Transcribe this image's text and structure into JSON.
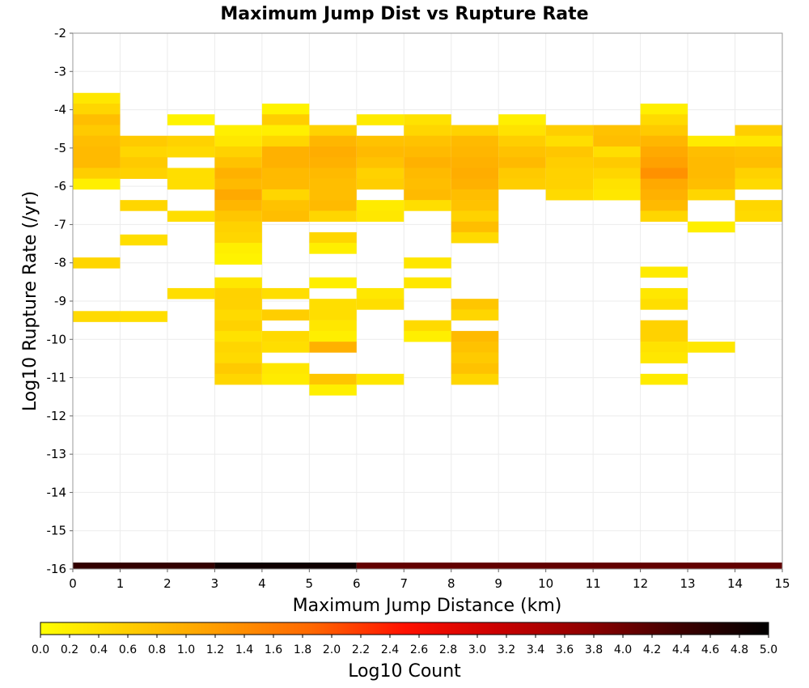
{
  "chart_data": {
    "type": "heatmap",
    "title": "Maximum Jump Dist vs Rupture Rate",
    "xlabel": "Maximum Jump Distance (km)",
    "ylabel": "Log10 Rupture Rate (/yr)",
    "xlim": [
      0,
      15
    ],
    "ylim": [
      -16,
      -2
    ],
    "x_ticks": [
      "0",
      "1",
      "2",
      "3",
      "4",
      "5",
      "6",
      "7",
      "8",
      "9",
      "10",
      "11",
      "12",
      "13",
      "14",
      "15"
    ],
    "y_ticks": [
      "-2",
      "-3",
      "-4",
      "-5",
      "-6",
      "-7",
      "-8",
      "-9",
      "-10",
      "-11",
      "-12",
      "-13",
      "-14",
      "-15",
      "-16"
    ],
    "x_bin_width": 1,
    "y_bin_height": 0.28,
    "grid": true,
    "colorbar": {
      "label": "Log10 Count",
      "range": [
        0,
        5
      ],
      "ticks": [
        "0.0",
        "0.2",
        "0.4",
        "0.6",
        "0.8",
        "1.0",
        "1.2",
        "1.4",
        "1.6",
        "1.8",
        "2.0",
        "2.2",
        "2.4",
        "2.6",
        "2.8",
        "3.0",
        "3.2",
        "3.4",
        "3.6",
        "3.8",
        "4.0",
        "4.2",
        "4.4",
        "4.6",
        "4.8",
        "5.0"
      ],
      "colors": [
        "#ffff00",
        "#ffcc00",
        "#ff9900",
        "#ff6600",
        "#ff1100",
        "#cc0000",
        "#8f0000",
        "#400000",
        "#000000"
      ]
    },
    "bottom_strip": [
      {
        "x0": 0,
        "x1": 3,
        "value": 4.5
      },
      {
        "x0": 3,
        "x1": 6,
        "value": 4.85
      },
      {
        "x0": 6,
        "x1": 15,
        "value": 4.1
      }
    ],
    "cells": [
      [
        0,
        -3.7,
        0.3
      ],
      [
        0,
        -3.98,
        0.5
      ],
      [
        0,
        -4.26,
        0.8
      ],
      [
        0,
        -4.54,
        0.65
      ],
      [
        0,
        -4.82,
        0.8
      ],
      [
        0,
        -5.1,
        0.85
      ],
      [
        0,
        -5.38,
        0.85
      ],
      [
        0,
        -5.66,
        0.6
      ],
      [
        0,
        -5.94,
        0.2
      ],
      [
        0,
        -8.0,
        0.5
      ],
      [
        0,
        -9.4,
        0.45
      ],
      [
        1,
        -4.82,
        0.65
      ],
      [
        1,
        -5.1,
        0.5
      ],
      [
        1,
        -5.38,
        0.65
      ],
      [
        1,
        -5.66,
        0.55
      ],
      [
        1,
        -6.5,
        0.5
      ],
      [
        1,
        -7.4,
        0.4
      ],
      [
        1,
        -9.4,
        0.4
      ],
      [
        2,
        -4.26,
        0.15
      ],
      [
        2,
        -4.82,
        0.55
      ],
      [
        2,
        -5.1,
        0.45
      ],
      [
        2,
        -5.66,
        0.4
      ],
      [
        2,
        -5.94,
        0.4
      ],
      [
        2,
        -6.78,
        0.4
      ],
      [
        2,
        -8.8,
        0.4
      ],
      [
        3,
        -4.54,
        0.2
      ],
      [
        3,
        -4.82,
        0.3
      ],
      [
        3,
        -5.1,
        0.55
      ],
      [
        3,
        -5.38,
        0.75
      ],
      [
        3,
        -5.66,
        0.95
      ],
      [
        3,
        -5.94,
        0.85
      ],
      [
        3,
        -6.22,
        1.05
      ],
      [
        3,
        -6.5,
        0.9
      ],
      [
        3,
        -6.78,
        0.7
      ],
      [
        3,
        -7.06,
        0.55
      ],
      [
        3,
        -7.34,
        0.5
      ],
      [
        3,
        -7.62,
        0.2
      ],
      [
        3,
        -7.9,
        0.15
      ],
      [
        3,
        -8.52,
        0.3
      ],
      [
        3,
        -8.8,
        0.55
      ],
      [
        3,
        -9.08,
        0.55
      ],
      [
        3,
        -9.36,
        0.45
      ],
      [
        3,
        -9.64,
        0.55
      ],
      [
        3,
        -9.92,
        0.35
      ],
      [
        3,
        -10.2,
        0.5
      ],
      [
        3,
        -10.48,
        0.45
      ],
      [
        3,
        -10.76,
        0.65
      ],
      [
        3,
        -11.04,
        0.5
      ],
      [
        4,
        -3.98,
        0.15
      ],
      [
        4,
        -4.26,
        0.6
      ],
      [
        4,
        -4.54,
        0.2
      ],
      [
        4,
        -4.82,
        0.5
      ],
      [
        4,
        -5.1,
        0.95
      ],
      [
        4,
        -5.38,
        0.95
      ],
      [
        4,
        -5.66,
        0.85
      ],
      [
        4,
        -5.94,
        0.85
      ],
      [
        4,
        -6.22,
        0.5
      ],
      [
        4,
        -6.5,
        0.75
      ],
      [
        4,
        -6.78,
        0.8
      ],
      [
        4,
        -8.8,
        0.4
      ],
      [
        4,
        -9.36,
        0.6
      ],
      [
        4,
        -9.92,
        0.45
      ],
      [
        4,
        -10.2,
        0.4
      ],
      [
        4,
        -10.76,
        0.3
      ],
      [
        4,
        -11.04,
        0.25
      ],
      [
        5,
        -4.54,
        0.55
      ],
      [
        5,
        -4.82,
        0.9
      ],
      [
        5,
        -5.1,
        1.0
      ],
      [
        5,
        -5.38,
        0.95
      ],
      [
        5,
        -5.66,
        0.85
      ],
      [
        5,
        -5.94,
        0.8
      ],
      [
        5,
        -6.22,
        0.8
      ],
      [
        5,
        -6.5,
        0.85
      ],
      [
        5,
        -6.78,
        0.5
      ],
      [
        5,
        -7.34,
        0.5
      ],
      [
        5,
        -7.62,
        0.2
      ],
      [
        5,
        -8.52,
        0.2
      ],
      [
        5,
        -9.08,
        0.4
      ],
      [
        5,
        -9.36,
        0.4
      ],
      [
        5,
        -9.64,
        0.3
      ],
      [
        5,
        -9.92,
        0.2
      ],
      [
        5,
        -10.2,
        0.95
      ],
      [
        5,
        -11.04,
        0.7
      ],
      [
        5,
        -11.32,
        0.2
      ],
      [
        6,
        -4.26,
        0.25
      ],
      [
        6,
        -4.82,
        0.75
      ],
      [
        6,
        -5.1,
        0.85
      ],
      [
        6,
        -5.38,
        0.75
      ],
      [
        6,
        -5.66,
        0.55
      ],
      [
        6,
        -5.94,
        0.6
      ],
      [
        6,
        -6.5,
        0.25
      ],
      [
        6,
        -6.78,
        0.3
      ],
      [
        6,
        -8.8,
        0.3
      ],
      [
        6,
        -9.08,
        0.4
      ],
      [
        6,
        -11.04,
        0.3
      ],
      [
        7,
        -4.26,
        0.35
      ],
      [
        7,
        -4.54,
        0.5
      ],
      [
        7,
        -4.82,
        0.75
      ],
      [
        7,
        -5.1,
        0.85
      ],
      [
        7,
        -5.38,
        0.95
      ],
      [
        7,
        -5.66,
        0.85
      ],
      [
        7,
        -5.94,
        0.8
      ],
      [
        7,
        -6.22,
        0.85
      ],
      [
        7,
        -6.5,
        0.4
      ],
      [
        7,
        -8.0,
        0.3
      ],
      [
        7,
        -8.52,
        0.3
      ],
      [
        7,
        -9.64,
        0.45
      ],
      [
        7,
        -9.92,
        0.2
      ],
      [
        8,
        -4.54,
        0.55
      ],
      [
        8,
        -4.82,
        0.85
      ],
      [
        8,
        -5.1,
        0.9
      ],
      [
        8,
        -5.38,
        0.95
      ],
      [
        8,
        -5.66,
        1.0
      ],
      [
        8,
        -5.94,
        0.95
      ],
      [
        8,
        -6.22,
        0.8
      ],
      [
        8,
        -6.5,
        0.75
      ],
      [
        8,
        -6.78,
        0.55
      ],
      [
        8,
        -7.06,
        0.8
      ],
      [
        8,
        -7.34,
        0.45
      ],
      [
        8,
        -9.08,
        0.7
      ],
      [
        8,
        -9.36,
        0.5
      ],
      [
        8,
        -9.92,
        0.85
      ],
      [
        8,
        -10.2,
        0.75
      ],
      [
        8,
        -10.48,
        0.65
      ],
      [
        8,
        -10.76,
        0.75
      ],
      [
        8,
        -11.04,
        0.5
      ],
      [
        9,
        -4.26,
        0.2
      ],
      [
        9,
        -4.54,
        0.35
      ],
      [
        9,
        -4.82,
        0.6
      ],
      [
        9,
        -5.1,
        0.75
      ],
      [
        9,
        -5.38,
        0.85
      ],
      [
        9,
        -5.66,
        0.65
      ],
      [
        9,
        -5.94,
        0.6
      ],
      [
        10,
        -4.54,
        0.6
      ],
      [
        10,
        -4.82,
        0.4
      ],
      [
        10,
        -5.1,
        0.7
      ],
      [
        10,
        -5.38,
        0.6
      ],
      [
        10,
        -5.66,
        0.55
      ],
      [
        10,
        -5.94,
        0.55
      ],
      [
        10,
        -6.22,
        0.45
      ],
      [
        11,
        -4.54,
        0.75
      ],
      [
        11,
        -4.82,
        0.8
      ],
      [
        11,
        -5.1,
        0.4
      ],
      [
        11,
        -5.38,
        0.65
      ],
      [
        11,
        -5.66,
        0.5
      ],
      [
        11,
        -5.94,
        0.35
      ],
      [
        11,
        -6.22,
        0.3
      ],
      [
        12,
        -3.98,
        0.2
      ],
      [
        12,
        -4.26,
        0.45
      ],
      [
        12,
        -4.54,
        0.65
      ],
      [
        12,
        -4.82,
        0.9
      ],
      [
        12,
        -5.1,
        1.05
      ],
      [
        12,
        -5.38,
        1.15
      ],
      [
        12,
        -5.66,
        1.35
      ],
      [
        12,
        -5.94,
        1.05
      ],
      [
        12,
        -6.22,
        0.95
      ],
      [
        12,
        -6.5,
        0.85
      ],
      [
        12,
        -6.78,
        0.5
      ],
      [
        12,
        -8.24,
        0.25
      ],
      [
        12,
        -8.8,
        0.3
      ],
      [
        12,
        -9.08,
        0.4
      ],
      [
        12,
        -9.64,
        0.55
      ],
      [
        12,
        -9.92,
        0.55
      ],
      [
        12,
        -10.2,
        0.35
      ],
      [
        12,
        -10.48,
        0.3
      ],
      [
        12,
        -11.04,
        0.25
      ],
      [
        13,
        -4.82,
        0.25
      ],
      [
        13,
        -5.1,
        0.8
      ],
      [
        13,
        -5.38,
        0.85
      ],
      [
        13,
        -5.66,
        0.85
      ],
      [
        13,
        -5.94,
        0.8
      ],
      [
        13,
        -6.22,
        0.5
      ],
      [
        13,
        -7.06,
        0.2
      ],
      [
        13,
        -10.2,
        0.3
      ],
      [
        14,
        -4.54,
        0.6
      ],
      [
        14,
        -4.82,
        0.3
      ],
      [
        14,
        -5.1,
        0.75
      ],
      [
        14,
        -5.38,
        0.8
      ],
      [
        14,
        -5.66,
        0.55
      ],
      [
        14,
        -5.94,
        0.45
      ],
      [
        14,
        -6.5,
        0.5
      ],
      [
        14,
        -6.78,
        0.45
      ]
    ]
  }
}
